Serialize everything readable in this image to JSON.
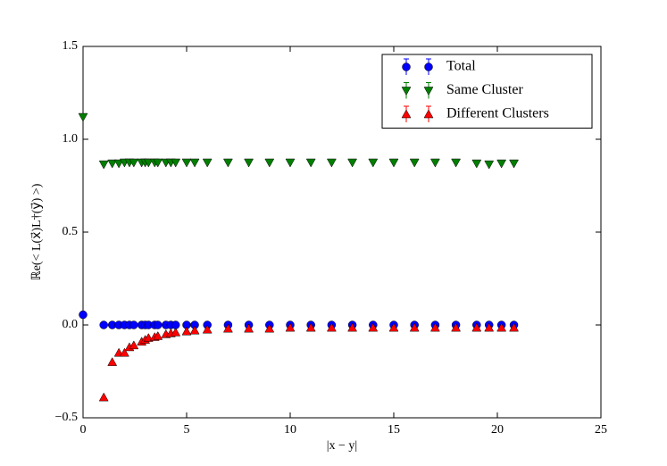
{
  "chart_data": {
    "type": "scatter",
    "xlabel": "|x − y|",
    "ylabel": "ℝe(< L(x⃗)L†(y⃗) >)",
    "x": [
      0,
      1,
      1.41,
      1.73,
      2,
      2.24,
      2.45,
      2.83,
      3,
      3.16,
      3.46,
      3.61,
      4,
      4.24,
      4.47,
      5,
      5.39,
      6,
      7,
      8,
      9,
      10,
      11,
      12,
      13,
      14,
      15,
      16,
      17,
      18,
      19,
      19.6,
      20.2,
      20.8
    ],
    "series": [
      {
        "name": "Total",
        "color": "#0000ff",
        "marker": "circle",
        "values": [
          0.055,
          0,
          0,
          0,
          0,
          0,
          0,
          0,
          0,
          0,
          0,
          0,
          0,
          0,
          0,
          0,
          0,
          0,
          0,
          0,
          0,
          0,
          0,
          0,
          0,
          0,
          0,
          0,
          0,
          0,
          0,
          0,
          0,
          0
        ]
      },
      {
        "name": "Same Cluster",
        "color": "#007f00",
        "marker": "triangle-down",
        "values": [
          1.12,
          0.865,
          0.87,
          0.87,
          0.875,
          0.875,
          0.875,
          0.875,
          0.875,
          0.875,
          0.875,
          0.875,
          0.875,
          0.875,
          0.875,
          0.875,
          0.875,
          0.875,
          0.875,
          0.875,
          0.875,
          0.875,
          0.875,
          0.875,
          0.875,
          0.875,
          0.875,
          0.875,
          0.875,
          0.875,
          0.87,
          0.865,
          0.87,
          0.87
        ]
      },
      {
        "name": "Different Clusters",
        "color": "#ff0000",
        "marker": "triangle-up",
        "values": [
          null,
          -0.39,
          -0.2,
          -0.15,
          -0.15,
          -0.12,
          -0.11,
          -0.09,
          -0.08,
          -0.07,
          -0.065,
          -0.06,
          -0.05,
          -0.045,
          -0.04,
          -0.035,
          -0.03,
          -0.025,
          -0.02,
          -0.02,
          -0.02,
          -0.015,
          -0.015,
          -0.015,
          -0.015,
          -0.015,
          -0.015,
          -0.015,
          -0.015,
          -0.015,
          -0.015,
          -0.015,
          -0.015,
          -0.015
        ]
      }
    ],
    "xlim": [
      0,
      25
    ],
    "xticks": [
      0,
      5,
      10,
      15,
      20,
      25
    ],
    "ylim": [
      -0.5,
      1.5
    ],
    "yticks": [
      {
        "value": -0.5,
        "label": "−0.5"
      },
      {
        "value": 0,
        "label": "0.0"
      },
      {
        "value": 0.5,
        "label": "0.5"
      },
      {
        "value": 1,
        "label": "1.0"
      },
      {
        "value": 1.5,
        "label": "1.5"
      }
    ],
    "legend": "upper right",
    "grid": false
  }
}
